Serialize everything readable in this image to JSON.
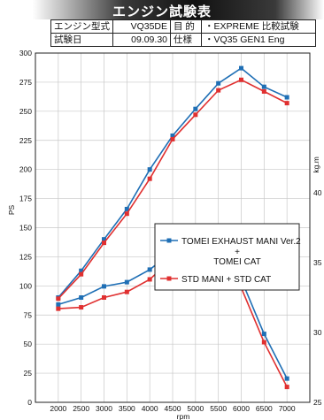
{
  "header": {
    "title": "エンジン試験表",
    "rows": [
      {
        "k1": "エンジン型式",
        "v1": "VQ35DE",
        "k2": "目 的",
        "v2": "・EXPREME 比較試験"
      },
      {
        "k1": "試験日",
        "v1": "09.09.30",
        "k2": "仕様",
        "v2": "・VQ35 GEN1 Eng"
      }
    ]
  },
  "colors": {
    "blue": "#1f6fb5",
    "red": "#e03030",
    "grid": "#c8c8c8"
  },
  "chart_data": {
    "type": "line",
    "x": [
      2000,
      2500,
      3000,
      3500,
      4000,
      4500,
      5000,
      5500,
      6000,
      6500,
      7000
    ],
    "xlabel": "rpm",
    "ylabel": "PS",
    "y2label": "kg.m",
    "xlim": [
      1500,
      7500
    ],
    "ylim": [
      0,
      300
    ],
    "y2lim": [
      25,
      50
    ],
    "xticks": [
      "2000",
      "2500",
      "3000",
      "3500",
      "4000",
      "4500",
      "5000",
      "5500",
      "6000",
      "6500",
      "7000"
    ],
    "yticks": [
      "0",
      "25",
      "50",
      "75",
      "100",
      "125",
      "150",
      "175",
      "200",
      "225",
      "250",
      "275",
      "300"
    ],
    "y2ticks": [
      "25",
      "30",
      "35",
      "40"
    ],
    "grid": true,
    "legend_position": "center-right",
    "power_series": [
      {
        "name": "TOMEI EXHAUST MANI Ver.2 + TOMEI CAT",
        "values": [
          90,
          113,
          140,
          166,
          200,
          229,
          252,
          274,
          287,
          271,
          262
        ],
        "color": "#1f6fb5"
      },
      {
        "name": "STD MANI + STD CAT",
        "values": [
          89,
          110,
          137,
          162,
          192,
          226,
          247,
          268,
          277,
          267,
          257
        ],
        "color": "#e03030"
      }
    ],
    "torque_series": [
      {
        "name": "TOMEI EXHAUST MANI Ver.2 + TOMEI CAT",
        "values": [
          32.0,
          32.5,
          33.3,
          33.6,
          34.5,
          35.8,
          35.4,
          35.0,
          33.8,
          29.9,
          26.7
        ],
        "color": "#1f6fb5"
      },
      {
        "name": "STD MANI + STD CAT",
        "values": [
          31.7,
          31.8,
          32.5,
          32.9,
          33.8,
          35.3,
          34.9,
          34.3,
          33.2,
          29.3,
          26.1
        ],
        "color": "#e03030"
      }
    ],
    "legend": {
      "entry1_line1": "TOMEI EXHAUST MANI Ver.2",
      "entry1_line2": "+",
      "entry1_line3": "TOMEI CAT",
      "entry2": "STD MANI + STD CAT"
    }
  }
}
